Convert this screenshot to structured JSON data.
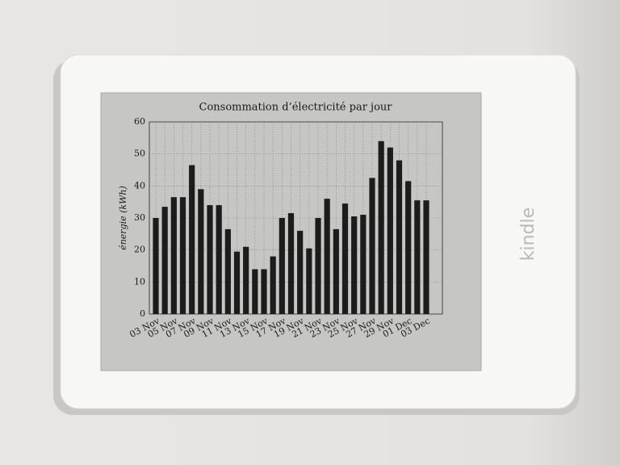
{
  "brand": "kindle",
  "chart_data": {
    "type": "bar",
    "title": "Consommation d’électricité par jour",
    "ylabel": "énergie (kWh)",
    "categories": [
      "03 Nov",
      null,
      "05 Nov",
      null,
      "07 Nov",
      null,
      "09 Nov",
      null,
      "11 Nov",
      null,
      "13 Nov",
      null,
      "15 Nov",
      null,
      "17 Nov",
      null,
      "19 Nov",
      null,
      "21 Nov",
      null,
      "23 Nov",
      null,
      "25 Nov",
      null,
      "27 Nov",
      null,
      "29 Nov",
      null,
      "01 Dec",
      null,
      "03 Dec"
    ],
    "values": [
      30,
      33.5,
      36.5,
      36.5,
      46.5,
      39,
      34,
      34,
      26.5,
      19.5,
      21,
      14,
      14,
      18,
      30,
      31.5,
      26,
      20.5,
      30,
      36,
      26.5,
      34.5,
      30.5,
      31,
      42.5,
      54,
      52,
      48,
      41.5,
      35.5,
      35.5
    ],
    "color": "#1c1c1c",
    "ylim": [
      0,
      60
    ],
    "yticks": [
      0,
      10,
      20,
      30,
      40,
      50,
      60
    ],
    "grid": true
  }
}
